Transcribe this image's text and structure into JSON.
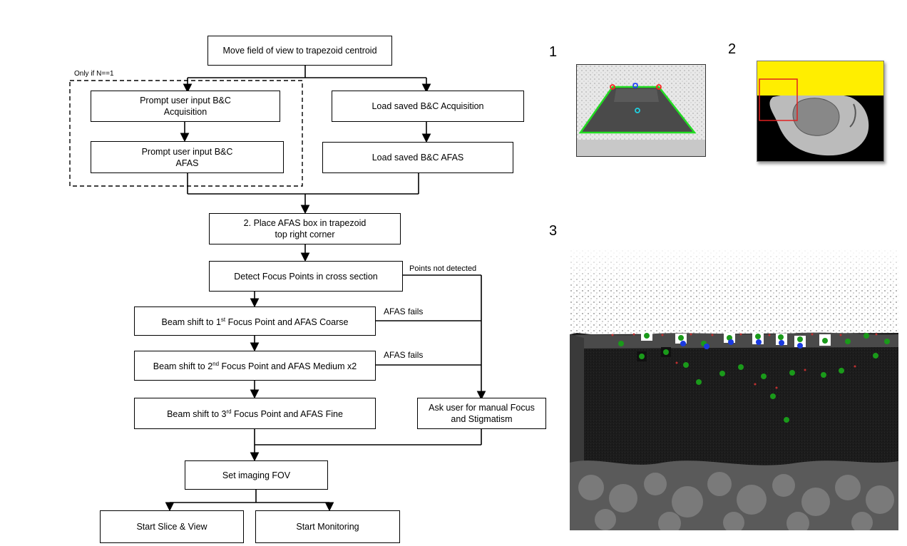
{
  "flow": {
    "move_fov": "Move field of view to trapezoid centroid",
    "only_if": "Only if N==1",
    "prompt_acq_l1": "Prompt user input B&C",
    "prompt_acq_l2": "Acquisition",
    "prompt_afas_l1": "Prompt user input B&C",
    "prompt_afas_l2": "AFAS",
    "load_acq": "Load saved B&C Acquisition",
    "load_afas": "Load saved B&C AFAS",
    "place_l1": "2. Place AFAS box in  trapezoid",
    "place_l2": "top right corner",
    "detect": "Detect Focus  Points in cross section",
    "points_not_detected": "Points not detected",
    "beam1_pre": "Beam shift to 1",
    "beam1_sup": "st",
    "beam1_post": " Focus Point and AFAS  Coarse",
    "afas_fails_1": "AFAS  fails",
    "beam2_pre": "Beam shift to 2",
    "beam2_sup": "nd",
    "beam2_post": " Focus Point and AFAS Medium x2",
    "afas_fails_2": "AFAS  fails",
    "beam3_pre": "Beam shift to 3",
    "beam3_sup": "rd",
    "beam3_post": " Focus Point and AFAS Fine",
    "manual_l1": "Ask user for manual Focus",
    "manual_l2": "and Stigmatism",
    "set_fov": "Set imaging FOV",
    "start_slice": "Start Slice & View",
    "start_monitor": "Start Monitoring"
  },
  "panels": {
    "p1": "1",
    "p2": "2",
    "p3": "3"
  },
  "colors": {
    "trapezoid_outline": "#22dd22",
    "corner_marker": "#ff2020",
    "center_marker": "#2040ff",
    "centroid_marker": "#20d0e0",
    "mask_yellow": "#ffee00",
    "roi_red": "#e02020",
    "focus_point_green": "#1a9a1a",
    "focus_point_blue": "#1a3ae0"
  }
}
